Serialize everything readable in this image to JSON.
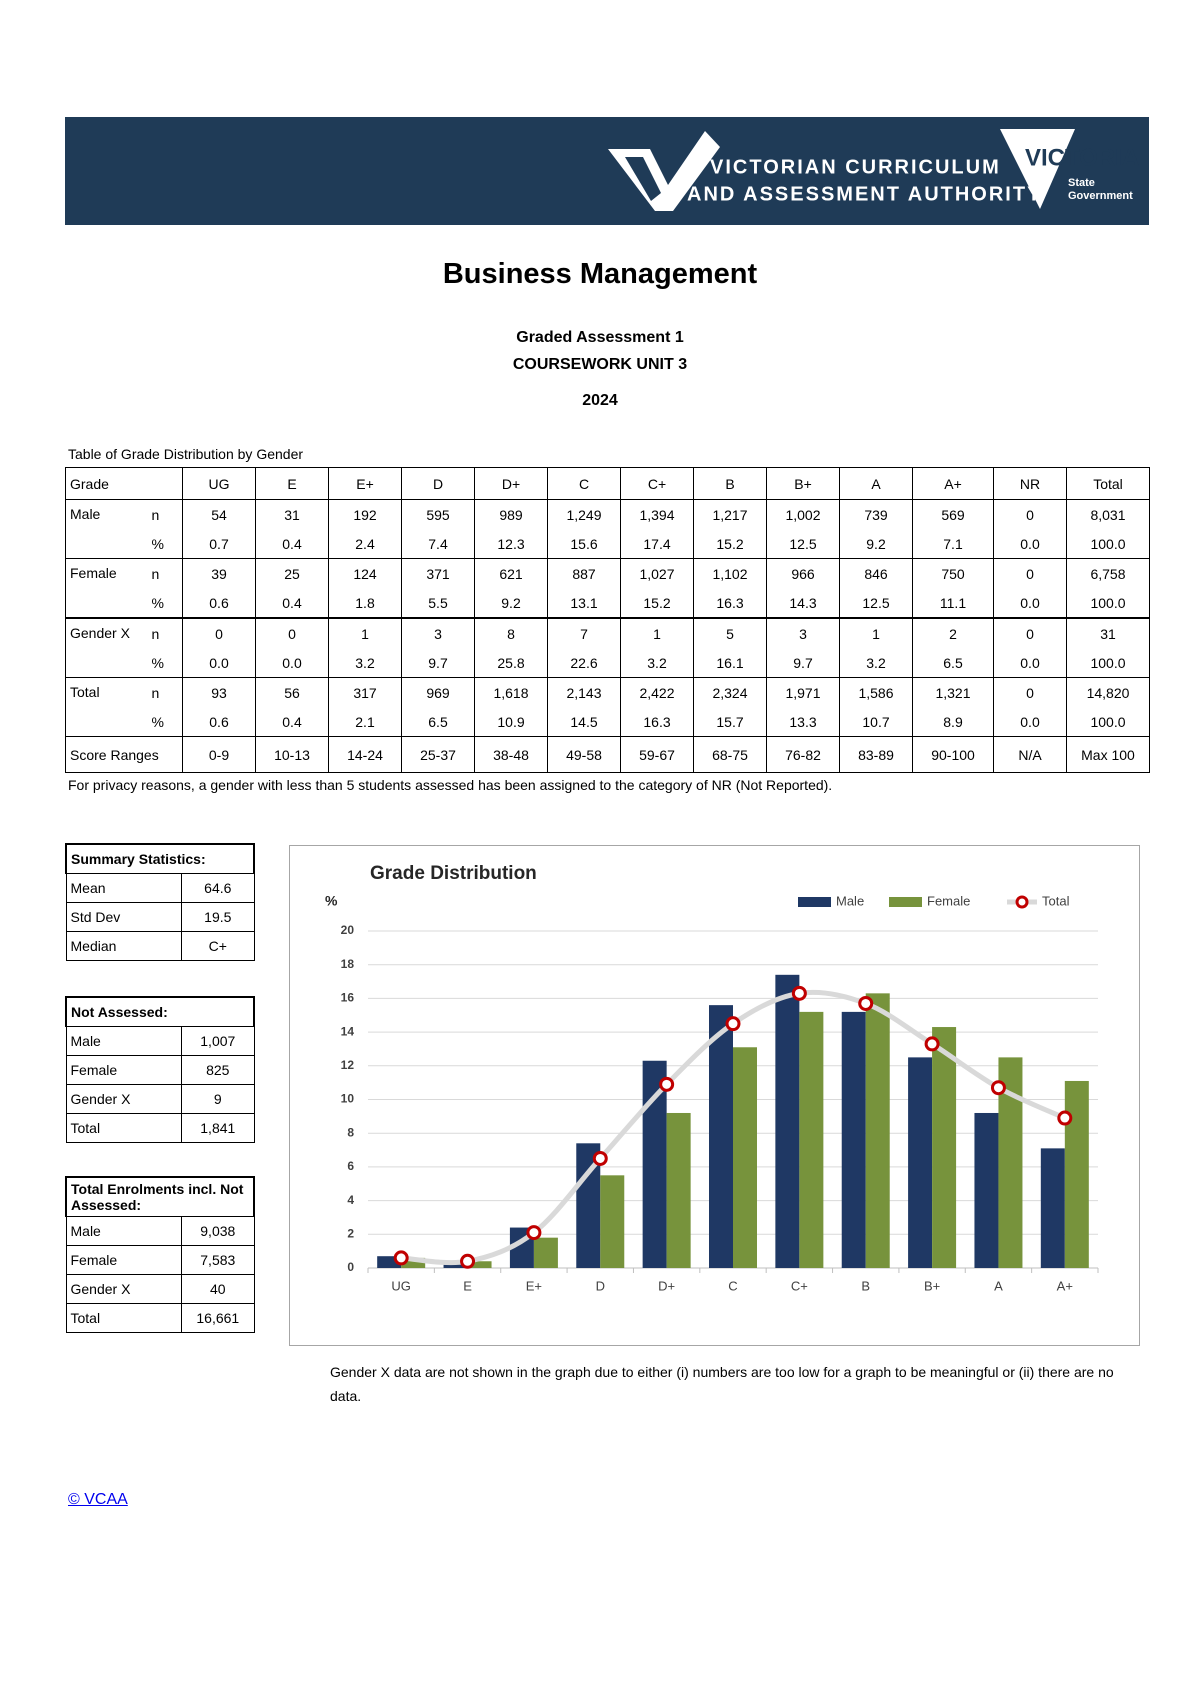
{
  "header": {
    "org_line1": "VICTORIAN CURRICULUM",
    "org_line2": "AND ASSESSMENT AUTHORITY",
    "gov_name": "VICTORIA",
    "gov_line1": "State",
    "gov_line2": "Government"
  },
  "title": "Business Management",
  "subtitle": [
    "Graded Assessment 1",
    "COURSEWORK UNIT 3",
    "2024"
  ],
  "table": {
    "caption": "Table of Grade Distribution by Gender",
    "header": [
      "Grade",
      "UG",
      "E",
      "E+",
      "D",
      "D+",
      "C",
      "C+",
      "B",
      "B+",
      "A",
      "A+",
      "NR",
      "Total"
    ],
    "groups": [
      {
        "label": "Male",
        "rows": [
          {
            "stat": "n",
            "cells": [
              "54",
              "31",
              "192",
              "595",
              "989",
              "1,249",
              "1,394",
              "1,217",
              "1,002",
              "739",
              "569",
              "0",
              "8,031"
            ]
          },
          {
            "stat": "%",
            "cells": [
              "0.7",
              "0.4",
              "2.4",
              "7.4",
              "12.3",
              "15.6",
              "17.4",
              "15.2",
              "12.5",
              "9.2",
              "7.1",
              "0.0",
              "100.0"
            ]
          }
        ]
      },
      {
        "label": "Female",
        "rows": [
          {
            "stat": "n",
            "cells": [
              "39",
              "25",
              "124",
              "371",
              "621",
              "887",
              "1,027",
              "1,102",
              "966",
              "846",
              "750",
              "0",
              "6,758"
            ]
          },
          {
            "stat": "%",
            "cells": [
              "0.6",
              "0.4",
              "1.8",
              "5.5",
              "9.2",
              "13.1",
              "15.2",
              "16.3",
              "14.3",
              "12.5",
              "11.1",
              "0.0",
              "100.0"
            ]
          }
        ]
      },
      {
        "label": "Gender X",
        "rows": [
          {
            "stat": "n",
            "cells": [
              "0",
              "0",
              "1",
              "3",
              "8",
              "7",
              "1",
              "5",
              "3",
              "1",
              "2",
              "0",
              "31"
            ]
          },
          {
            "stat": "%",
            "cells": [
              "0.0",
              "0.0",
              "3.2",
              "9.7",
              "25.8",
              "22.6",
              "3.2",
              "16.1",
              "9.7",
              "3.2",
              "6.5",
              "0.0",
              "100.0"
            ]
          }
        ]
      },
      {
        "label": "Total",
        "rows": [
          {
            "stat": "n",
            "cells": [
              "93",
              "56",
              "317",
              "969",
              "1,618",
              "2,143",
              "2,422",
              "2,324",
              "1,971",
              "1,586",
              "1,321",
              "0",
              "14,820"
            ]
          },
          {
            "stat": "%",
            "cells": [
              "0.6",
              "0.4",
              "2.1",
              "6.5",
              "10.9",
              "14.5",
              "16.3",
              "15.7",
              "13.3",
              "10.7",
              "8.9",
              "0.0",
              "100.0"
            ]
          }
        ]
      }
    ],
    "score_row": {
      "label": "Score Ranges",
      "cells": [
        "0-9",
        "10-13",
        "14-24",
        "25-37",
        "38-48",
        "49-58",
        "59-67",
        "68-75",
        "76-82",
        "83-89",
        "90-100",
        "N/A",
        "Max 100"
      ]
    },
    "note": "For privacy reasons, a gender with less than 5 students assessed has been assigned to the category of NR (Not Reported)."
  },
  "side_tables": [
    {
      "title": "Summary Statistics:",
      "rows": [
        [
          "Mean",
          "64.6"
        ],
        [
          "Std Dev",
          "19.5"
        ],
        [
          "Median",
          "C+"
        ]
      ]
    },
    {
      "title": "Not Assessed:",
      "rows": [
        [
          "Male",
          "1,007"
        ],
        [
          "Female",
          "825"
        ],
        [
          "Gender X",
          "9"
        ],
        [
          "Total",
          "1,841"
        ]
      ]
    },
    {
      "title": "Total Enrolments incl. Not Assessed:",
      "rows": [
        [
          "Male",
          "9,038"
        ],
        [
          "Female",
          "7,583"
        ],
        [
          "Gender X",
          "40"
        ],
        [
          "Total",
          "16,661"
        ]
      ]
    }
  ],
  "chart_data": {
    "type": "bar",
    "title": "Grade Distribution",
    "y_label": "%",
    "categories": [
      "UG",
      "E",
      "E+",
      "D",
      "D+",
      "C",
      "C+",
      "B",
      "B+",
      "A",
      "A+"
    ],
    "series": [
      {
        "name": "Male",
        "color": "#1f3864",
        "values": [
          0.7,
          0.4,
          2.4,
          7.4,
          12.3,
          15.6,
          17.4,
          15.2,
          12.5,
          9.2,
          7.1
        ]
      },
      {
        "name": "Female",
        "color": "#77933c",
        "values": [
          0.6,
          0.4,
          1.8,
          5.5,
          9.2,
          13.1,
          15.2,
          16.3,
          14.3,
          12.5,
          11.1
        ]
      },
      {
        "name": "Total",
        "type": "line",
        "color": "#d9d9d9",
        "marker_color": "#c00000",
        "values": [
          0.6,
          0.4,
          2.1,
          6.5,
          10.9,
          14.5,
          16.3,
          15.7,
          13.3,
          10.7,
          8.9
        ]
      }
    ],
    "ylim": [
      0,
      20
    ],
    "yticks": [
      0,
      2,
      4,
      6,
      8,
      10,
      12,
      14,
      16,
      18,
      20
    ],
    "grid": true,
    "legend": "top-right"
  },
  "chart_note": "Gender X data are not shown in the graph due to either (i) numbers are too low for a graph to be meaningful or (ii) there are no data.",
  "footer_link": "© VCAA"
}
